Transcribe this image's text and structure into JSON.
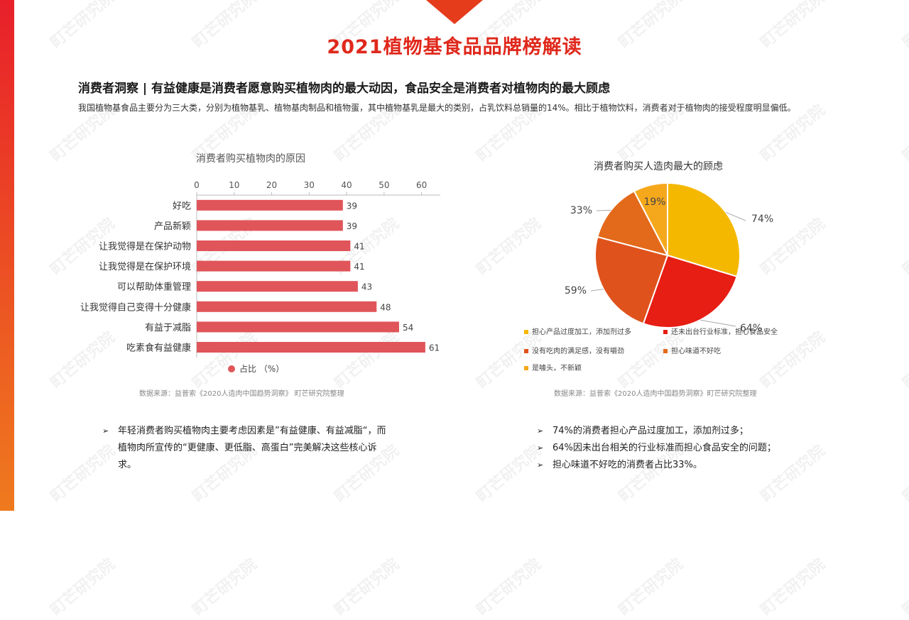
{
  "page": {
    "title": "2021植物基食品品牌榜解读",
    "subtitle": "消费者洞察 | 有益健康是消费者愿意购买植物肉的最大动因，食品安全是消费者对植物肉的最大顾虑",
    "intro": "我国植物基食品主要分为三大类，分别为植物基乳、植物基肉制品和植物蛋，其中植物基乳是最大的类别，占乳饮料总销量的14%。相比于植物饮料，消费者对于植物肉的接受程度明显偏低。",
    "watermark": "町芒研究院",
    "accent_color": "#e0281c"
  },
  "bar_source": "数据来源：益普索《2020人造肉中国趋势洞察》 町芒研究院整理",
  "pie_source": "数据来源：益普索《2020人造肉中国趋势洞察》町芒研究院整理",
  "notes_left": [
    "年轻消费者购买植物肉主要考虑因素是”有益健康、有益减脂“，而植物肉所宣传的“更健康、更低脂、高蛋白”完美解决这些核心诉求。"
  ],
  "notes_right": [
    "74%的消费者担心产品过度加工，添加剂过多；",
    "64%因未出台相关的行业标准而担心食品安全的问题；",
    "担心味道不好吃的消费者占比33%。"
  ],
  "chart_data": [
    {
      "type": "bar",
      "orientation": "horizontal",
      "title": "消费者购买植物肉的原因",
      "categories": [
        "好吃",
        "产品新颖",
        "让我觉得是在保护动物",
        "让我觉得是在保护环境",
        "可以帮助体重管理",
        "让我觉得自己变得十分健康",
        "有益于减脂",
        "吃素食有益健康"
      ],
      "series": [
        {
          "name": "占比 （%）",
          "values": [
            39,
            39,
            41,
            41,
            43,
            48,
            54,
            61
          ],
          "color": "#e05559"
        }
      ],
      "xlim": [
        0,
        65
      ],
      "ticks": [
        0,
        10,
        20,
        30,
        40,
        50,
        60
      ],
      "axis_position": "top",
      "legend": "bottom"
    },
    {
      "type": "pie",
      "title": "消费者购买人造肉最大的顾虑",
      "slices": [
        {
          "label": "担心产品过度加工，添加剂过多",
          "value": 74,
          "display": "74%",
          "color": "#f5b800"
        },
        {
          "label": "还未出台行业标准，担心食品安全",
          "value": 64,
          "display": "64%",
          "color": "#e61e14"
        },
        {
          "label": "没有吃肉的满足感，没有嚼劲",
          "value": 59,
          "display": "59%",
          "color": "#e0521c"
        },
        {
          "label": "担心味道不好吃",
          "value": 33,
          "display": "33%",
          "color": "#e36a1a"
        },
        {
          "label": "是噱头，不新颖",
          "value": 19,
          "display": "19%",
          "color": "#f6a81d"
        }
      ],
      "legend": "bottom"
    }
  ]
}
